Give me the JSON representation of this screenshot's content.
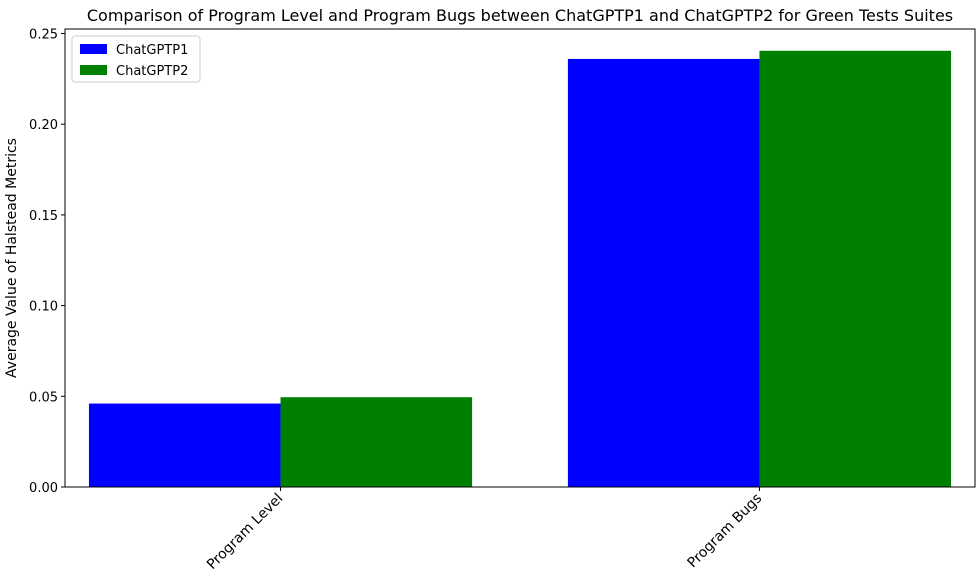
{
  "chart_data": {
    "type": "bar",
    "title": "Comparison of Program Level and Program Bugs between ChatGPTP1 and ChatGPTP2 for Green Tests Suites",
    "xlabel": "",
    "ylabel": "Average Value of Halstead Metrics",
    "categories": [
      "Program Level",
      "Program Bugs"
    ],
    "series": [
      {
        "name": "ChatGPTP1",
        "color": "#0000ff",
        "values": [
          0.046,
          0.236
        ]
      },
      {
        "name": "ChatGPTP2",
        "color": "#008000",
        "values": [
          0.0495,
          0.2405
        ]
      }
    ],
    "ylim": [
      0,
      0.2525
    ],
    "yticks": [
      0.0,
      0.05,
      0.1,
      0.15,
      0.2,
      0.25
    ],
    "ytick_labels": [
      "0.00",
      "0.05",
      "0.10",
      "0.15",
      "0.20",
      "0.25"
    ],
    "grid": false,
    "legend_position": "upper-left"
  }
}
